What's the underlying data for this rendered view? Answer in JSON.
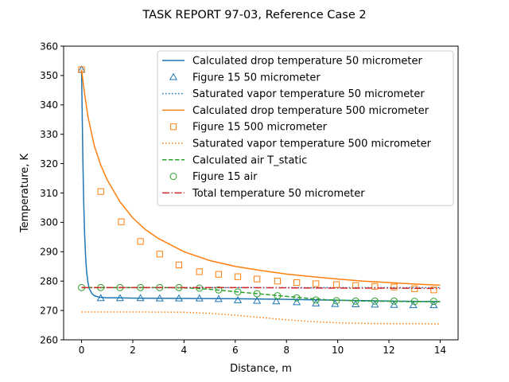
{
  "chart_data": {
    "type": "line",
    "title": "TASK REPORT 97-03, Reference Case 2",
    "xlabel": "Distance, m",
    "ylabel": "Temperature, K",
    "xlim": [
      -0.7,
      14.7
    ],
    "ylim": [
      260,
      360
    ],
    "xticks": [
      0,
      2,
      4,
      6,
      8,
      10,
      12,
      14
    ],
    "yticks": [
      260,
      270,
      280,
      290,
      300,
      310,
      320,
      330,
      340,
      350,
      360
    ],
    "grid": false,
    "legend_position": "upper-right",
    "series": [
      {
        "name": "Calculated drop temperature 50 micrometer",
        "kind": "line",
        "style": "solid",
        "color": "#1f77b4",
        "x": [
          0,
          0.02,
          0.05,
          0.08,
          0.12,
          0.16,
          0.2,
          0.25,
          0.3,
          0.4,
          0.5,
          0.7,
          1.0,
          1.5,
          2,
          4,
          6,
          8,
          10,
          12,
          14
        ],
        "y": [
          352,
          340,
          322,
          308,
          296,
          288,
          283,
          279.5,
          277.5,
          275.8,
          275,
          274.5,
          274.3,
          274.3,
          274.2,
          274.1,
          274,
          273.8,
          273.5,
          273.2,
          273
        ]
      },
      {
        "name": "Figure 15 50 micrometer",
        "kind": "marker",
        "marker": "triangle",
        "color": "#1f77b4",
        "x": [
          0,
          0.75,
          1.5,
          2.3,
          3.05,
          3.8,
          4.6,
          5.35,
          6.1,
          6.85,
          7.6,
          8.4,
          9.15,
          9.9,
          10.7,
          11.45,
          12.2,
          12.95,
          13.75
        ],
        "y": [
          352,
          274.2,
          274.2,
          274.2,
          274.1,
          274.1,
          274.1,
          273.9,
          273.5,
          273.3,
          273.1,
          272.8,
          272.4,
          272.2,
          272.1,
          272,
          271.9,
          271.8,
          271.8
        ]
      },
      {
        "name": "Saturated vapor temperature 50 micrometer",
        "kind": "line",
        "style": "dotted",
        "color": "#1f77b4",
        "x": [
          0,
          2,
          4,
          6,
          8,
          10,
          12,
          14
        ],
        "y": [
          277.8,
          277.8,
          277.8,
          277.8,
          277.8,
          277.8,
          277.8,
          277.8
        ]
      },
      {
        "name": "Calculated drop temperature 500 micrometer",
        "kind": "line",
        "style": "solid",
        "color": "#ff7f0e",
        "x": [
          0,
          0.1,
          0.25,
          0.5,
          0.75,
          1,
          1.5,
          2,
          2.5,
          3,
          4,
          5,
          6,
          7,
          8,
          9,
          10,
          11,
          12,
          13,
          14
        ],
        "y": [
          352,
          345,
          336,
          326,
          319.5,
          314.5,
          307,
          301.5,
          297.5,
          294.5,
          290,
          287,
          285,
          283.6,
          282.4,
          281.5,
          280.7,
          280,
          279.5,
          279,
          278.6
        ]
      },
      {
        "name": "Figure 15 500 micrometer",
        "kind": "marker",
        "marker": "square",
        "color": "#ff7f0e",
        "x": [
          0,
          0.75,
          1.55,
          2.3,
          3.05,
          3.8,
          4.6,
          5.35,
          6.1,
          6.85,
          7.65,
          8.4,
          9.15,
          9.95,
          10.7,
          11.45,
          12.2,
          13,
          13.75
        ],
        "y": [
          352,
          310.5,
          300.2,
          293.5,
          289.2,
          285.5,
          283.2,
          282.3,
          281.5,
          280.7,
          280,
          279.5,
          279.1,
          278.8,
          278.5,
          278.2,
          278,
          277.4,
          277
        ]
      },
      {
        "name": "Saturated vapor temperature 500 micrometer",
        "kind": "line",
        "style": "dotted",
        "color": "#ff7f0e",
        "x": [
          0,
          2,
          4,
          5,
          6,
          7,
          8,
          9,
          10,
          11,
          12,
          13,
          14
        ],
        "y": [
          269.5,
          269.5,
          269.4,
          269,
          268.4,
          267.6,
          266.8,
          266.2,
          265.8,
          265.6,
          265.5,
          265.5,
          265.4
        ]
      },
      {
        "name": "Calculated air T_static",
        "kind": "line",
        "style": "dashed",
        "color": "#2ca02c",
        "x": [
          0,
          1,
          2,
          3,
          4,
          4.5,
          5,
          5.5,
          6,
          6.5,
          7,
          7.5,
          8,
          8.5,
          9,
          9.5,
          10,
          11,
          12,
          13,
          14
        ],
        "y": [
          277.8,
          277.8,
          277.8,
          277.8,
          277.7,
          277.5,
          277.2,
          276.8,
          276.4,
          276,
          275.6,
          275.2,
          274.8,
          274.4,
          274,
          273.7,
          273.5,
          273.2,
          273.1,
          273,
          273
        ]
      },
      {
        "name": "Figure 15 air",
        "kind": "marker",
        "marker": "circle",
        "color": "#2ca02c",
        "x": [
          0,
          0.75,
          1.5,
          2.3,
          3.05,
          3.8,
          4.6,
          5.35,
          6.1,
          6.85,
          7.65,
          8.4,
          9.15,
          9.95,
          10.7,
          11.45,
          12.2,
          13,
          13.75
        ],
        "y": [
          277.8,
          277.8,
          277.8,
          277.8,
          277.8,
          277.8,
          277.6,
          277,
          276.3,
          275.7,
          275,
          274.3,
          273.6,
          273.3,
          273.2,
          273.2,
          273.2,
          273.1,
          273.1
        ]
      },
      {
        "name": "Total temperature 50 micrometer",
        "kind": "line",
        "style": "dashdot",
        "color": "#d62728",
        "x": [
          0,
          2,
          4,
          6,
          8,
          10,
          12,
          14
        ],
        "y": [
          277.8,
          277.8,
          277.8,
          277.8,
          277.7,
          277.6,
          277.6,
          277.5
        ]
      }
    ]
  }
}
